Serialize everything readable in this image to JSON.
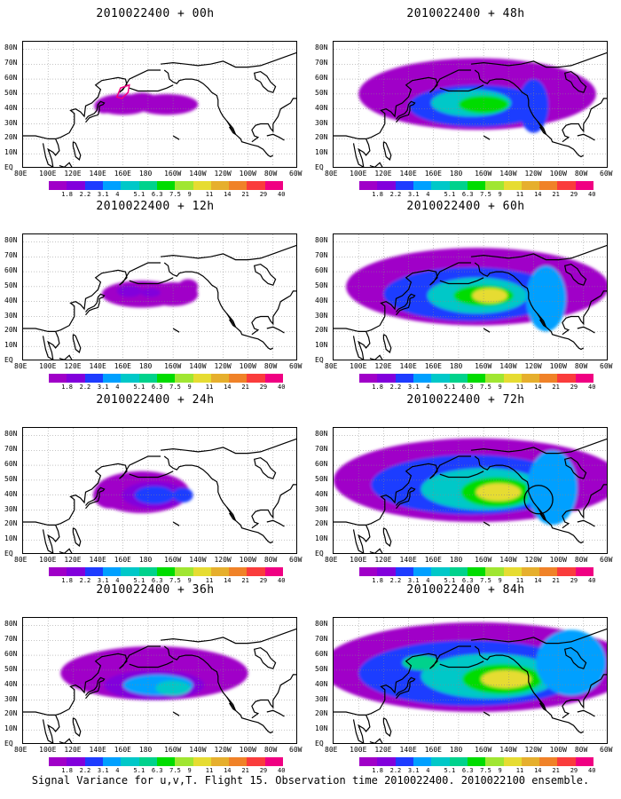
{
  "caption": "Signal Variance for u,v,T. Flight 15. Observation time 2010022400. 2010022100 ensemble.",
  "lat_labels": [
    "80N",
    "70N",
    "60N",
    "50N",
    "40N",
    "30N",
    "20N",
    "10N",
    "EQ"
  ],
  "lon_labels": [
    "80E",
    "100E",
    "120E",
    "140E",
    "160E",
    "180",
    "160W",
    "140W",
    "120W",
    "100W",
    "80W",
    "60W"
  ],
  "colorbar_labels": [
    "1.8",
    "2.2",
    "3.1",
    "4",
    "5.1",
    "6.3",
    "7.5",
    "9",
    "11",
    "14",
    "21",
    "29",
    "40"
  ],
  "colorbar_colors": [
    "#a000c8",
    "#8200dc",
    "#1e3cff",
    "#00a0ff",
    "#00c8c8",
    "#00d28c",
    "#00dc00",
    "#a0e632",
    "#e6dc32",
    "#e6af2d",
    "#f08228",
    "#fa3c3c",
    "#f00082"
  ],
  "panels": [
    {
      "title": "2010022400 + 00h",
      "level": 0,
      "marker": "polygon"
    },
    {
      "title": "2010022400 + 48h",
      "level": 4,
      "marker": ""
    },
    {
      "title": "2010022400 + 12h",
      "level": 1,
      "marker": ""
    },
    {
      "title": "2010022400 + 60h",
      "level": 5,
      "marker": ""
    },
    {
      "title": "2010022400 + 24h",
      "level": 2,
      "marker": ""
    },
    {
      "title": "2010022400 + 72h",
      "level": 6,
      "marker": "circle"
    },
    {
      "title": "2010022400 + 36h",
      "level": 3,
      "marker": ""
    },
    {
      "title": "2010022400 + 84h",
      "level": 7,
      "marker": ""
    }
  ]
}
